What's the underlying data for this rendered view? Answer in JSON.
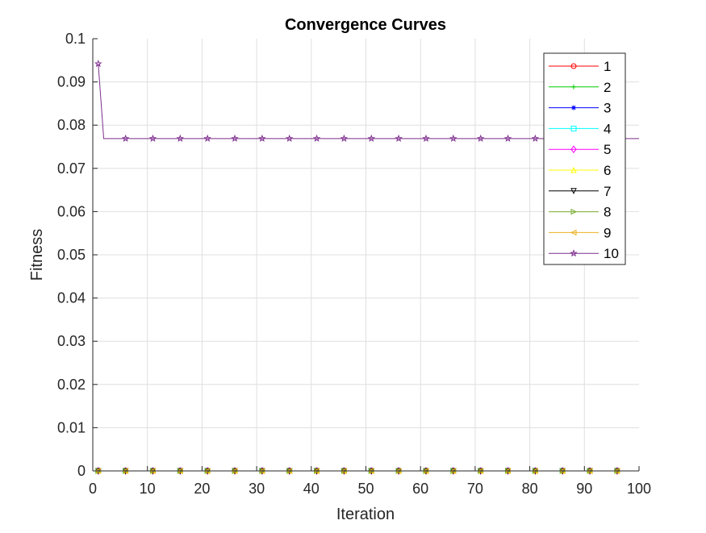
{
  "chart_data": {
    "type": "line",
    "title": "Convergence Curves",
    "xlabel": "Iteration",
    "ylabel": "Fitness",
    "xlim": [
      0,
      100
    ],
    "ylim": [
      0,
      0.1
    ],
    "xticks": [
      0,
      10,
      20,
      30,
      40,
      50,
      60,
      70,
      80,
      90,
      100
    ],
    "xtick_labels": [
      "0",
      "10",
      "20",
      "30",
      "40",
      "50",
      "60",
      "70",
      "80",
      "90",
      "100"
    ],
    "yticks": [
      0,
      0.01,
      0.02,
      0.03,
      0.04,
      0.05,
      0.06,
      0.07,
      0.08,
      0.09,
      0.1
    ],
    "ytick_labels": [
      "0",
      "0.01",
      "0.02",
      "0.03",
      "0.04",
      "0.05",
      "0.06",
      "0.07",
      "0.08",
      "0.09",
      "0.1"
    ],
    "grid": true,
    "legend_position": "top-right",
    "marker_x": [
      1,
      6,
      11,
      16,
      21,
      26,
      31,
      36,
      41,
      46,
      51,
      56,
      61,
      66,
      71,
      76,
      81,
      86,
      91,
      96
    ],
    "series": [
      {
        "name": "1",
        "color": "#ff0000",
        "marker": "circle",
        "points": [
          [
            1,
            0
          ],
          [
            100,
            0
          ]
        ]
      },
      {
        "name": "2",
        "color": "#00cc00",
        "marker": "plus",
        "points": [
          [
            1,
            0
          ],
          [
            100,
            0
          ]
        ]
      },
      {
        "name": "3",
        "color": "#0000ff",
        "marker": "asterisk",
        "points": [
          [
            1,
            0
          ],
          [
            100,
            0
          ]
        ]
      },
      {
        "name": "4",
        "color": "#00ffff",
        "marker": "square",
        "points": [
          [
            1,
            0
          ],
          [
            100,
            0
          ]
        ]
      },
      {
        "name": "5",
        "color": "#ff00ff",
        "marker": "diamond",
        "points": [
          [
            1,
            0
          ],
          [
            100,
            0
          ]
        ]
      },
      {
        "name": "6",
        "color": "#ffff00",
        "marker": "triangle-up",
        "points": [
          [
            1,
            0
          ],
          [
            100,
            0
          ]
        ]
      },
      {
        "name": "7",
        "color": "#000000",
        "marker": "triangle-down",
        "points": [
          [
            1,
            0
          ],
          [
            100,
            0
          ]
        ]
      },
      {
        "name": "8",
        "color": "#77ac30",
        "marker": "triangle-right",
        "points": [
          [
            1,
            0
          ],
          [
            100,
            0
          ]
        ]
      },
      {
        "name": "9",
        "color": "#edb120",
        "marker": "triangle-left",
        "points": [
          [
            1,
            0
          ],
          [
            100,
            0
          ]
        ]
      },
      {
        "name": "10",
        "color": "#7e2f8e",
        "marker": "pentagram",
        "points": [
          [
            1,
            0.0942
          ],
          [
            2,
            0.0769
          ],
          [
            100,
            0.0769
          ]
        ]
      }
    ]
  }
}
